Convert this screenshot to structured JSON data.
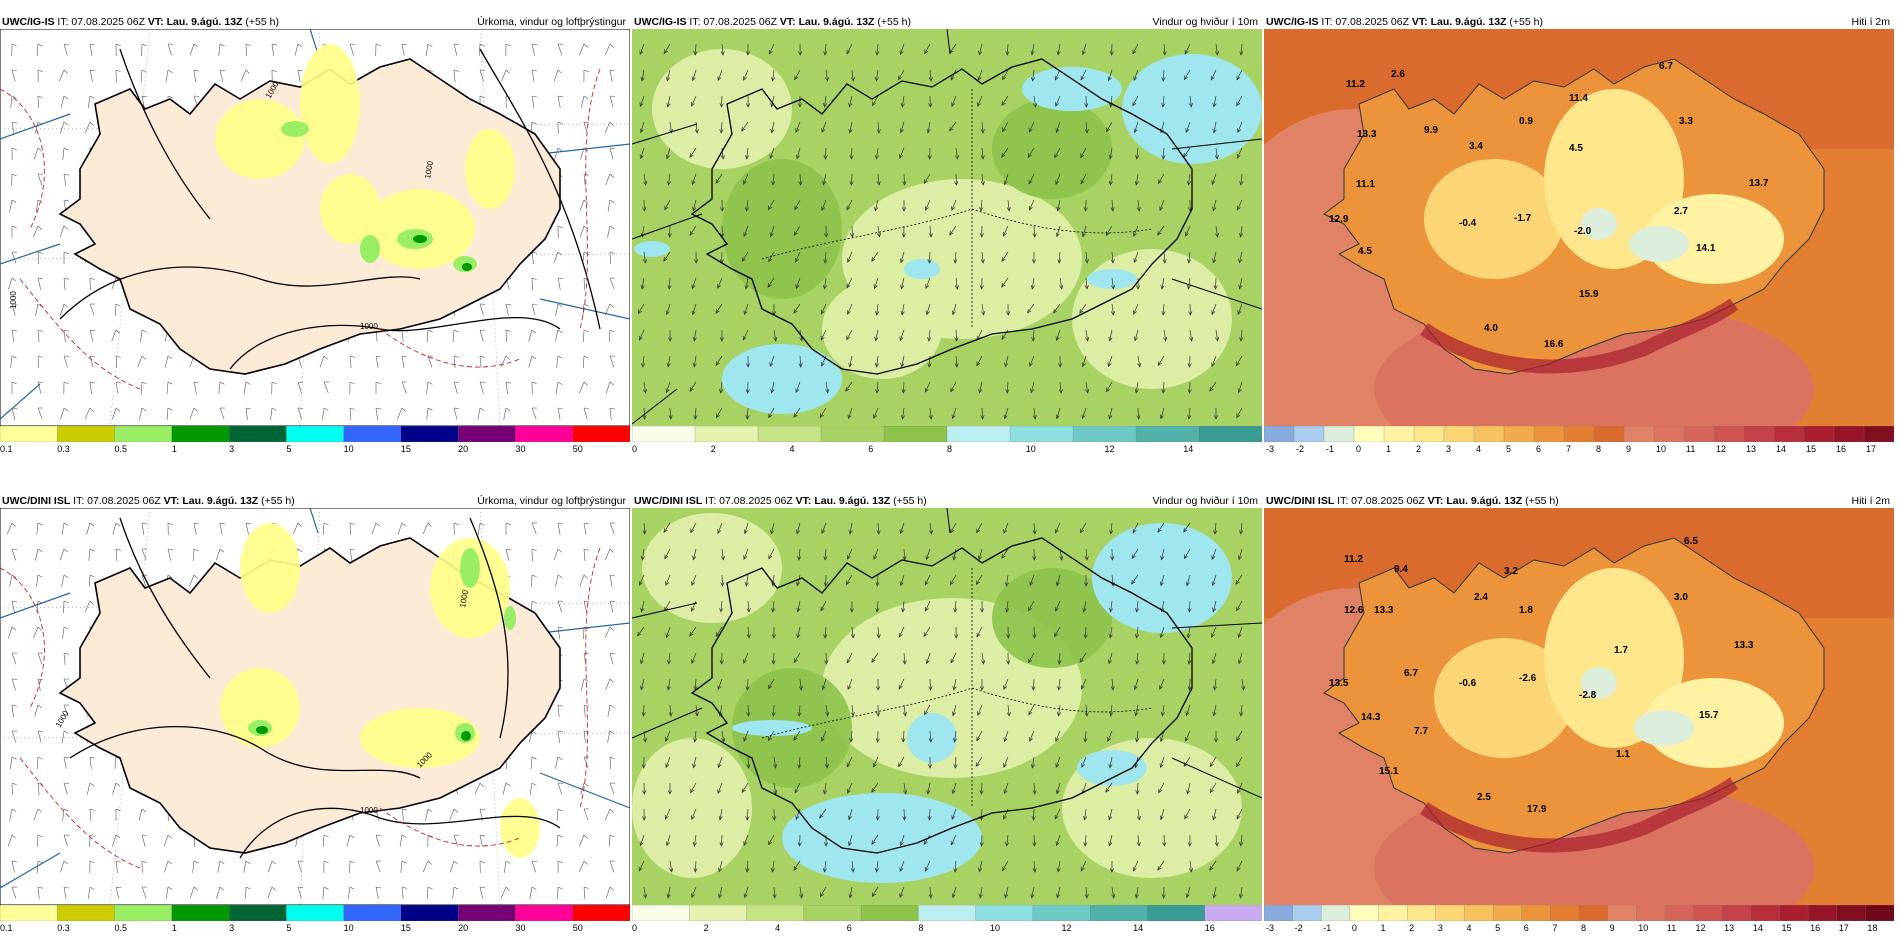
{
  "rows": [
    {
      "model": "UWC/IG-IS",
      "it": "IT: 07.08.2025 06Z",
      "vt_label": "VT:",
      "vt_value": "Lau. 9.ágú. 13Z",
      "lead": "(+55 h)",
      "panels": {
        "precip": {
          "title": "Úrkoma, vindur og loftþrýstingur",
          "ticks": [
            "0.1",
            "0.3",
            "0.5",
            "1",
            "3",
            "5",
            "10",
            "15",
            "20",
            "30",
            "50"
          ],
          "colors": [
            "#ffff99",
            "#cccc00",
            "#99ee66",
            "#009900",
            "#006633",
            "#00ffee",
            "#3366ff",
            "#000088",
            "#770077",
            "#ff0099",
            "#ff0000"
          ],
          "isobars": [
            "1000",
            "1000",
            "1000",
            "1000"
          ]
        },
        "wind": {
          "title": "Vindur og hviður í 10m",
          "ticks": [
            "0",
            "2",
            "4",
            "6",
            "8",
            "10",
            "12",
            "14"
          ],
          "colors": [
            "#fafcea",
            "#e6f2b0",
            "#c6e386",
            "#a8d263",
            "#8dc24b",
            "#bdeef2",
            "#8ddfe0",
            "#6ec8c4",
            "#52b2aa",
            "#3a9b92"
          ]
        },
        "temp": {
          "title": "Hiti í 2m",
          "ticks": [
            "-3",
            "-2",
            "-1",
            "0",
            "1",
            "2",
            "3",
            "4",
            "5",
            "6",
            "7",
            "8",
            "9",
            "10",
            "11",
            "12",
            "13",
            "14",
            "15",
            "16",
            "17"
          ],
          "colors": [
            "#88aadd",
            "#aaccee",
            "#ddeedd",
            "#ffffbb",
            "#fff3a3",
            "#fde68c",
            "#fbd576",
            "#f6c15f",
            "#f1ab4c",
            "#eb943c",
            "#e27f32",
            "#d96b2e",
            "#e08266",
            "#da7460",
            "#d4655a",
            "#cd5451",
            "#c44147",
            "#b72f3b",
            "#a8202f",
            "#961427",
            "#820c20"
          ],
          "labels": [
            "11.2",
            "2.6",
            "6.7",
            "13.3",
            "9.9",
            "0.9",
            "11.4",
            "3.3",
            "3.4",
            "4.5",
            "11.1",
            "13.7",
            "12.9",
            "-0.4",
            "-1.7",
            "-2.0",
            "2.7",
            "4.5",
            "14.1",
            "15.9",
            "4.0",
            "16.6"
          ]
        }
      }
    },
    {
      "model": "UWC/DINI ISL",
      "it": "IT: 07.08.2025 06Z",
      "vt_label": "VT:",
      "vt_value": "Lau. 9.ágú. 13Z",
      "lead": "(+55 h)",
      "panels": {
        "precip": {
          "title": "Úrkoma, vindur og loftþrýstingur",
          "ticks": [
            "0.1",
            "0.3",
            "0.5",
            "1",
            "3",
            "5",
            "10",
            "15",
            "20",
            "30",
            "50"
          ],
          "colors": [
            "#ffff99",
            "#cccc00",
            "#99ee66",
            "#009900",
            "#006633",
            "#00ffee",
            "#3366ff",
            "#000088",
            "#770077",
            "#ff0099",
            "#ff0000"
          ],
          "isobars": [
            "1000",
            "1000",
            "1000",
            "1000"
          ]
        },
        "wind": {
          "title": "Vindur og hviður í 10m",
          "ticks": [
            "0",
            "2",
            "4",
            "6",
            "8",
            "10",
            "12",
            "14",
            "16"
          ],
          "colors": [
            "#fafcea",
            "#e6f2b0",
            "#c6e386",
            "#a8d263",
            "#8dc24b",
            "#bdeef2",
            "#8ddfe0",
            "#6ec8c4",
            "#52b2aa",
            "#3a9b92",
            "#c8aaf0"
          ]
        },
        "temp": {
          "title": "Hiti í 2m",
          "ticks": [
            "-3",
            "-2",
            "-1",
            "0",
            "1",
            "2",
            "3",
            "4",
            "5",
            "6",
            "7",
            "8",
            "9",
            "10",
            "11",
            "12",
            "13",
            "14",
            "15",
            "16",
            "17",
            "18"
          ],
          "colors": [
            "#88aadd",
            "#aaccee",
            "#ddeedd",
            "#ffffbb",
            "#fff3a3",
            "#fde68c",
            "#fbd576",
            "#f6c15f",
            "#f1ab4c",
            "#eb943c",
            "#e27f32",
            "#d96b2e",
            "#e08266",
            "#da7460",
            "#d4655a",
            "#cd5451",
            "#c44147",
            "#b72f3b",
            "#a8202f",
            "#961427",
            "#820c20",
            "#6e081a"
          ],
          "labels": [
            "11.2",
            "9.4",
            "6.5",
            "3.2",
            "12.6",
            "13.3",
            "2.4",
            "1.8",
            "3.0",
            "1.7",
            "13.3",
            "13.5",
            "6.7",
            "-0.6",
            "-2.6",
            "-2.8",
            "14.3",
            "15.7",
            "7.7",
            "1.1",
            "15.1",
            "2.5",
            "17.9"
          ]
        }
      }
    }
  ]
}
